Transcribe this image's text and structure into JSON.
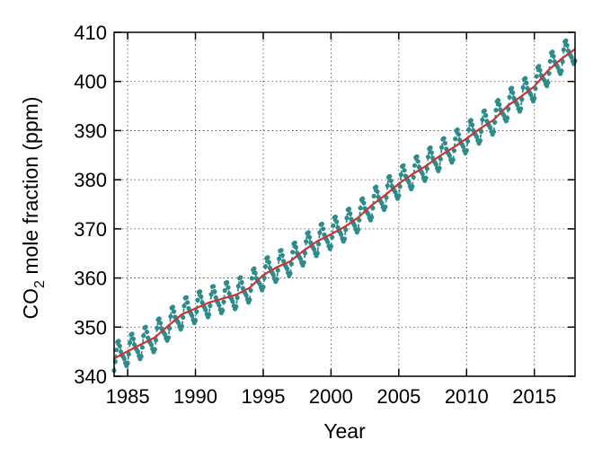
{
  "chart_data": {
    "type": "line",
    "xlabel": "Year",
    "ylabel_main": "CO",
    "ylabel_sub": "2",
    "ylabel_rest": " mole fraction (ppm)",
    "xlim": [
      1984.0,
      2018.0
    ],
    "ylim": [
      340,
      410
    ],
    "x_ticks": [
      1985,
      1990,
      1995,
      2000,
      2005,
      2010,
      2015
    ],
    "y_ticks": [
      340,
      350,
      360,
      370,
      380,
      390,
      400,
      410
    ],
    "grid": true,
    "legend": "none",
    "colors": {
      "monthly": "#2e8b8b",
      "trend": "#cc3333"
    },
    "series": [
      {
        "style": "monthly-points-dashed",
        "description": "monthly mean with seasonal cycle",
        "amplitude": 2.6,
        "points_per_year": 12
      },
      {
        "style": "solid-line",
        "description": "deseasonalized trend",
        "x": [
          1984.0,
          1985.0,
          1986.0,
          1987.0,
          1988.0,
          1989.0,
          1990.0,
          1991.0,
          1992.0,
          1993.0,
          1994.0,
          1995.0,
          1996.0,
          1997.0,
          1998.0,
          1999.0,
          2000.0,
          2001.0,
          2002.0,
          2003.0,
          2004.0,
          2005.0,
          2006.0,
          2007.0,
          2008.0,
          2009.0,
          2010.0,
          2011.0,
          2012.0,
          2013.0,
          2014.0,
          2015.0,
          2016.0,
          2017.0,
          2018.0
        ],
        "y": [
          343.6,
          345.1,
          346.5,
          347.9,
          350.3,
          352.6,
          353.8,
          355.0,
          355.8,
          356.6,
          358.0,
          360.6,
          362.2,
          363.4,
          365.6,
          367.5,
          368.9,
          370.4,
          372.3,
          374.8,
          376.9,
          379.2,
          381.1,
          382.8,
          384.8,
          386.5,
          388.4,
          390.4,
          392.2,
          395.0,
          396.9,
          399.0,
          402.2,
          404.6,
          406.6
        ]
      }
    ]
  }
}
